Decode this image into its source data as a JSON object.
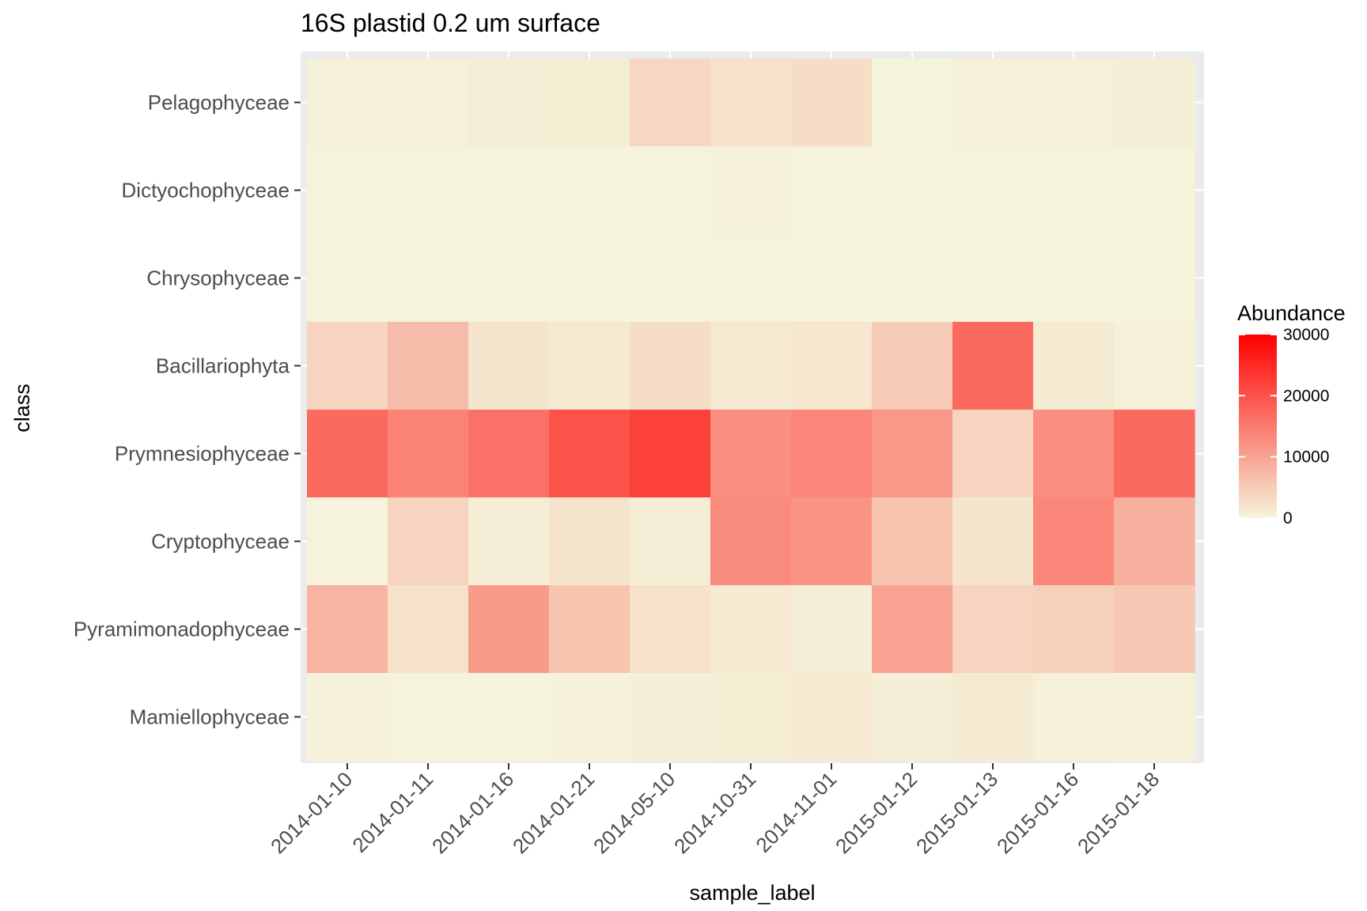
{
  "chart_data": {
    "type": "heatmap",
    "title": "16S plastid 0.2 um surface",
    "xlabel": "sample_label",
    "ylabel": "class",
    "x_categories": [
      "2014-01-10",
      "2014-01-11",
      "2014-01-16",
      "2014-01-21",
      "2014-05-10",
      "2014-10-31",
      "2014-11-01",
      "2015-01-12",
      "2015-01-13",
      "2015-01-16",
      "2015-01-18"
    ],
    "y_categories": [
      "Pelagophyceae",
      "Dictyochophyceae",
      "Chrysophyceae",
      "Bacillariophyta",
      "Prymnesiophyceae",
      "Cryptophyceae",
      "Pyramimonadophyceae",
      "Mamiellophyceae"
    ],
    "values": [
      [
        600,
        600,
        800,
        900,
        3500,
        2500,
        3000,
        300,
        600,
        600,
        800
      ],
      [
        300,
        300,
        200,
        200,
        200,
        500,
        100,
        100,
        100,
        100,
        100
      ],
      [
        100,
        100,
        100,
        100,
        100,
        100,
        100,
        100,
        100,
        100,
        100
      ],
      [
        4000,
        7000,
        2000,
        1500,
        3000,
        1500,
        1800,
        5000,
        17000,
        1200,
        500
      ],
      [
        17000,
        14000,
        16000,
        20000,
        22000,
        12500,
        13500,
        11500,
        4000,
        12500,
        17000
      ],
      [
        200,
        4000,
        1000,
        2000,
        1000,
        13000,
        12000,
        6000,
        2000,
        13500,
        8500
      ],
      [
        8000,
        2500,
        11000,
        6000,
        2500,
        1500,
        700,
        10000,
        4000,
        4500,
        5500
      ],
      [
        400,
        300,
        300,
        400,
        700,
        900,
        1500,
        800,
        1200,
        600,
        500
      ]
    ],
    "legend": {
      "title": "Abundance",
      "ticks": [
        0,
        10000,
        20000,
        30000
      ],
      "tick_labels": [
        "0",
        "10000",
        "20000",
        "30000"
      ],
      "min": 0,
      "max": 30000,
      "low_color": "#f5f5dc",
      "high_color": "#ff0000",
      "position": "right"
    },
    "grid": true
  }
}
